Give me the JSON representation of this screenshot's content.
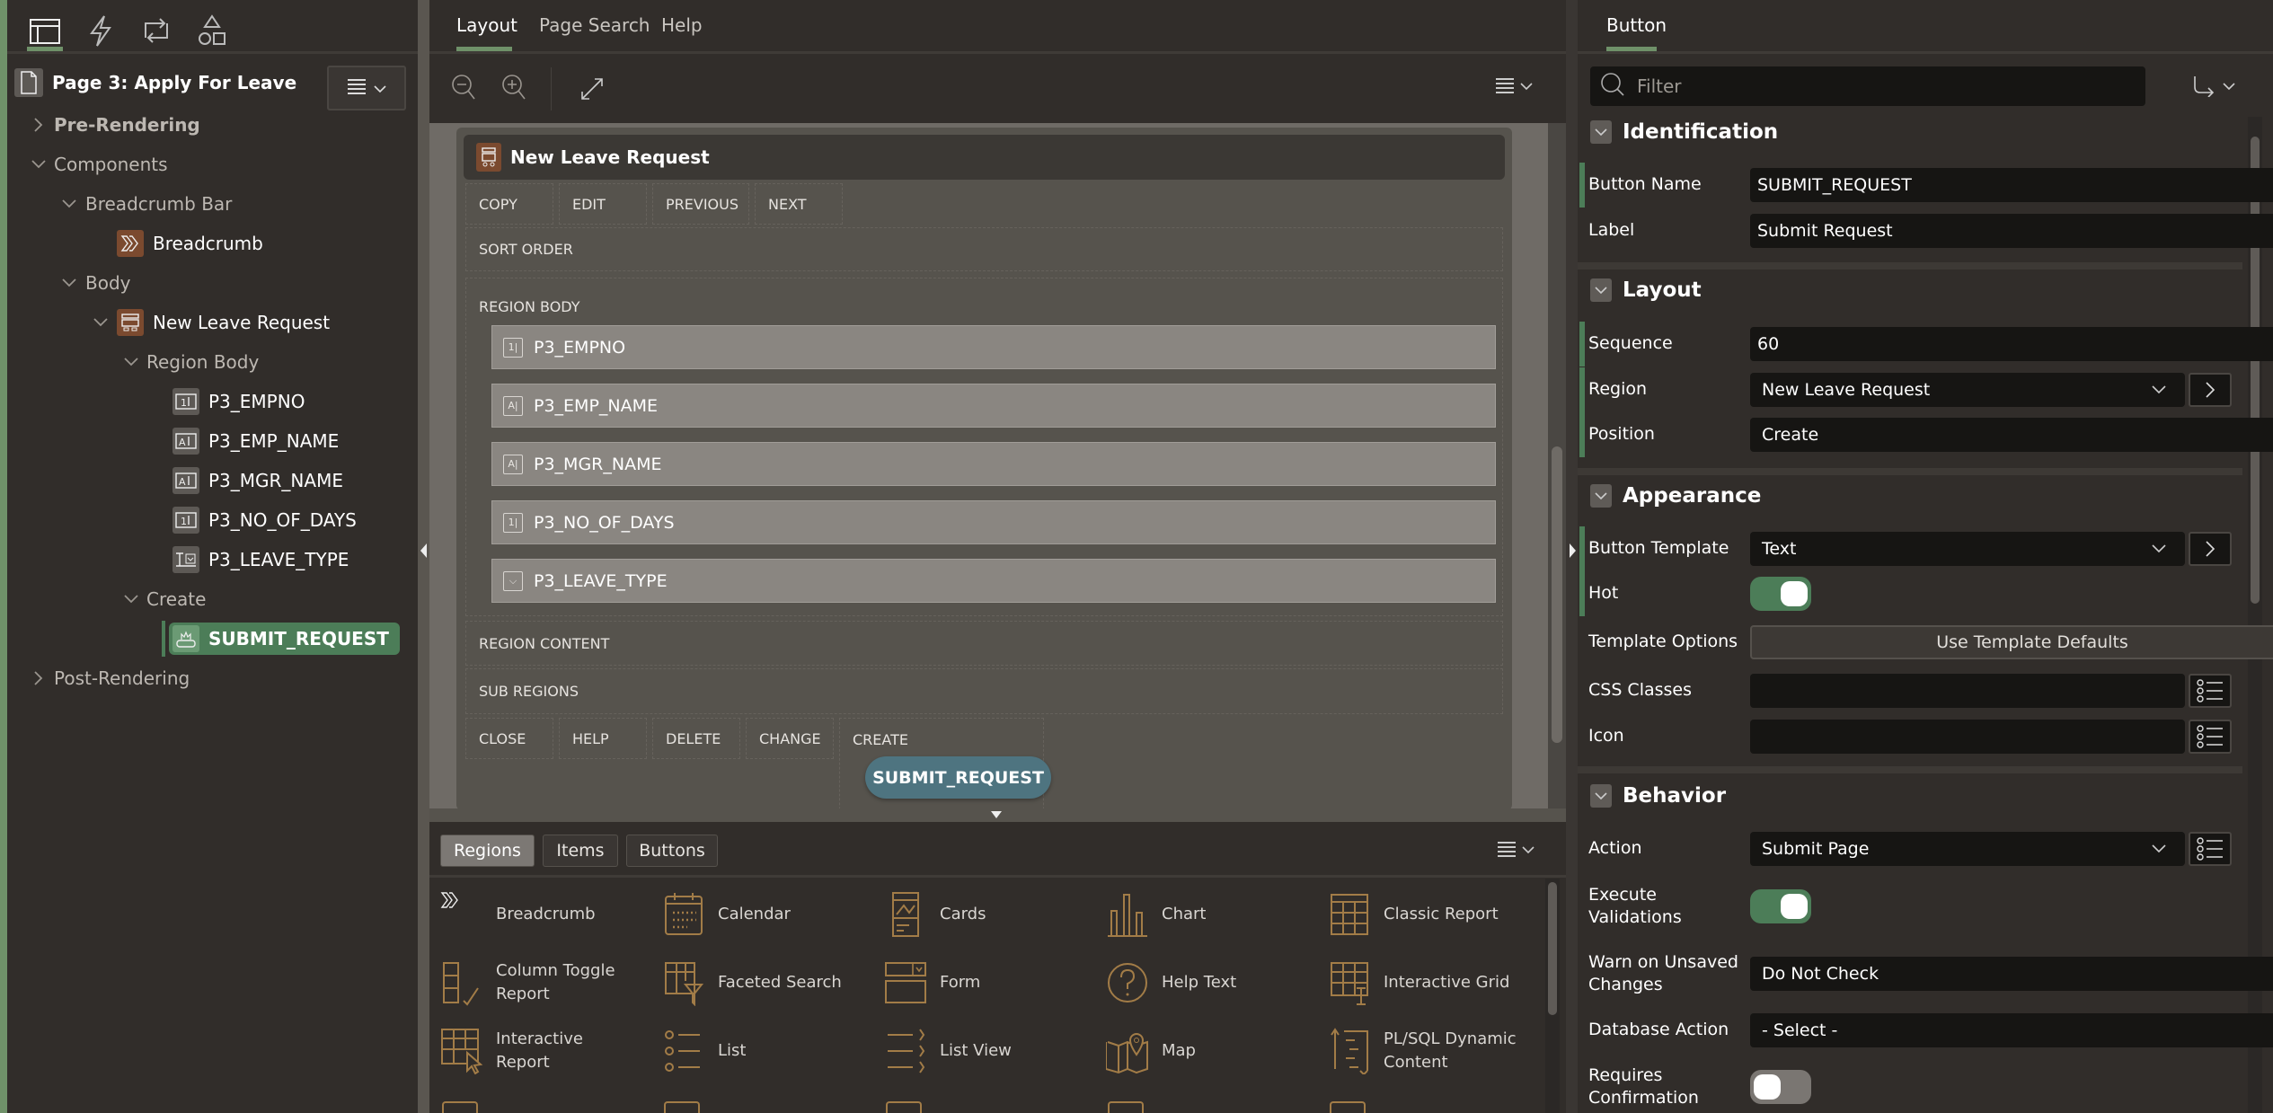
{
  "left": {
    "top_tabs": [
      {
        "icon": "rendering-icon",
        "active": true
      },
      {
        "icon": "lightning-icon"
      },
      {
        "icon": "refresh-icon"
      },
      {
        "icon": "shapes-icon"
      }
    ],
    "page_title": "Page 3: Apply For Leave",
    "tree": [
      {
        "label": "Pre-Rendering",
        "level": 0,
        "chevron": "right",
        "bold": true
      },
      {
        "label": "Components",
        "level": 0,
        "chevron": "down"
      },
      {
        "label": "Breadcrumb Bar",
        "level": 1,
        "chevron": "down"
      },
      {
        "label": "Breadcrumb",
        "level": 2,
        "icon": "breadcrumb-icon",
        "iconStyle": "orange",
        "white": true
      },
      {
        "label": "Body",
        "level": 1,
        "chevron": "down"
      },
      {
        "label": "New Leave Request",
        "level": 2,
        "chevron": "down",
        "icon": "region-icon",
        "iconStyle": "orange",
        "white": true
      },
      {
        "label": "Region Body",
        "level": 3,
        "chevron": "down"
      },
      {
        "label": "P3_EMPNO",
        "level": 4,
        "icon": "number-field-icon",
        "iconStyle": "gray",
        "white": true
      },
      {
        "label": "P3_EMP_NAME",
        "level": 4,
        "icon": "text-field-icon",
        "iconStyle": "gray",
        "white": true
      },
      {
        "label": "P3_MGR_NAME",
        "level": 4,
        "icon": "text-field-icon",
        "iconStyle": "gray",
        "white": true
      },
      {
        "label": "P3_NO_OF_DAYS",
        "level": 4,
        "icon": "number-field-icon",
        "iconStyle": "gray",
        "white": true
      },
      {
        "label": "P3_LEAVE_TYPE",
        "level": 4,
        "icon": "select-list-icon",
        "iconStyle": "gray",
        "white": true
      },
      {
        "label": "Create",
        "level": 3,
        "chevron": "down"
      },
      {
        "label": "SUBMIT_REQUEST",
        "level": 4,
        "icon": "button-icon",
        "selected": true
      },
      {
        "label": "Post-Rendering",
        "level": 0,
        "chevron": "right"
      }
    ]
  },
  "center": {
    "tabs": [
      {
        "label": "Layout",
        "active": true
      },
      {
        "label": "Page Search"
      },
      {
        "label": "Help"
      }
    ],
    "region_title": "New Leave Request",
    "top_positions": [
      "COPY",
      "EDIT",
      "PREVIOUS",
      "NEXT"
    ],
    "sort_order": "SORT ORDER",
    "region_body": "REGION BODY",
    "items": [
      {
        "label": "P3_EMPNO",
        "glyph": "1|"
      },
      {
        "label": "P3_EMP_NAME",
        "glyph": "A|"
      },
      {
        "label": "P3_MGR_NAME",
        "glyph": "A|"
      },
      {
        "label": "P3_NO_OF_DAYS",
        "glyph": "1|"
      },
      {
        "label": "P3_LEAVE_TYPE",
        "glyph": "⌵"
      }
    ],
    "region_content": "REGION CONTENT",
    "sub_regions": "SUB REGIONS",
    "bottom_positions": [
      "CLOSE",
      "HELP",
      "DELETE",
      "CHANGE",
      "CREATE"
    ],
    "button": "SUBMIT_REQUEST",
    "gallery_tabs": [
      {
        "label": "Regions",
        "active": true
      },
      {
        "label": "Items"
      },
      {
        "label": "Buttons"
      }
    ],
    "gallery": [
      {
        "label": "Breadcrumb",
        "icon": "breadcrumb-icon"
      },
      {
        "label": "Calendar",
        "icon": "calendar-icon"
      },
      {
        "label": "Cards",
        "icon": "cards-icon"
      },
      {
        "label": "Chart",
        "icon": "chart-icon"
      },
      {
        "label": "Classic Report",
        "icon": "table-icon"
      },
      {
        "label": "Column Toggle Report",
        "icon": "column-toggle-icon"
      },
      {
        "label": "Faceted Search",
        "icon": "faceted-search-icon"
      },
      {
        "label": "Form",
        "icon": "form-icon"
      },
      {
        "label": "Help Text",
        "icon": "help-icon"
      },
      {
        "label": "Interactive Grid",
        "icon": "interactive-grid-icon"
      },
      {
        "label": "Interactive Report",
        "icon": "interactive-report-icon"
      },
      {
        "label": "List",
        "icon": "list-icon"
      },
      {
        "label": "List View",
        "icon": "list-view-icon"
      },
      {
        "label": "Map",
        "icon": "map-icon"
      },
      {
        "label": "PL/SQL Dynamic Content",
        "icon": "plsql-icon"
      }
    ]
  },
  "right": {
    "tab": "Button",
    "filter_placeholder": "Filter",
    "sections": {
      "identification": "Identification",
      "layout": "Layout",
      "appearance": "Appearance",
      "behavior": "Behavior"
    },
    "fields": [
      {
        "label": "Button Name",
        "type": "text",
        "value": "SUBMIT_REQUEST",
        "bar": true
      },
      {
        "label": "Label",
        "type": "text",
        "value": "Submit Request"
      },
      {
        "label": "Sequence",
        "type": "text",
        "value": "60",
        "bar": true
      },
      {
        "label": "Region",
        "type": "select",
        "value": "New Leave Request",
        "side": "chevron-right-icon",
        "bar": true
      },
      {
        "label": "Position",
        "type": "select",
        "value": "Create",
        "bar": true
      },
      {
        "label": "Button Template",
        "type": "select",
        "value": "Text",
        "side": "chevron-right-icon",
        "bar": true
      },
      {
        "label": "Hot",
        "type": "toggle",
        "on": true,
        "bar": true
      },
      {
        "label": "Template Options",
        "type": "button",
        "value": "Use Template Defaults"
      },
      {
        "label": "CSS Classes",
        "type": "text",
        "value": "",
        "side": "list-picker-icon"
      },
      {
        "label": "Icon",
        "type": "text",
        "value": "",
        "side": "list-picker-icon"
      },
      {
        "label": "Action",
        "type": "select",
        "value": "Submit Page",
        "side": "list-picker-icon"
      },
      {
        "label": "Execute Validations",
        "type": "toggle",
        "on": true
      },
      {
        "label": "Warn on Unsaved Changes",
        "type": "select",
        "value": "Do Not Check"
      },
      {
        "label": "Database Action",
        "type": "select",
        "value": "- Select -"
      },
      {
        "label": "Requires Confirmation",
        "type": "toggle",
        "on": false
      }
    ]
  },
  "colors": {
    "accent_green": "#4c7d58",
    "tab_indicator": "#6f9169",
    "region_orange": "#7b4a2f",
    "button_teal": "#4e7480",
    "gallery_icon": "#a27c47"
  }
}
